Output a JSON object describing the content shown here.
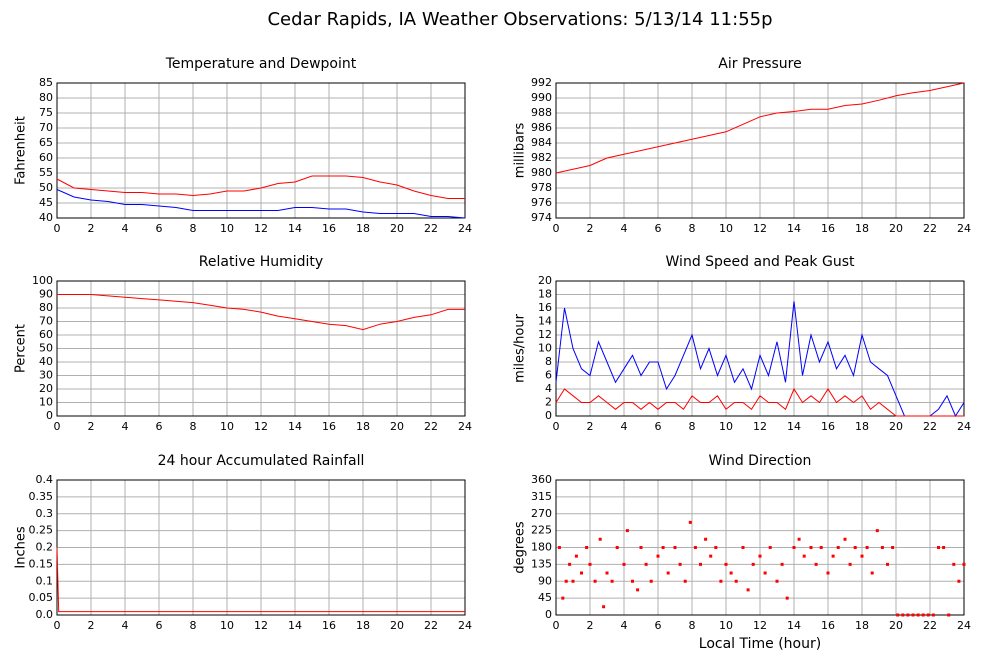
{
  "title": "Cedar Rapids, IA Weather Observations: 5/13/14 11:55p",
  "chart_data": [
    {
      "type": "line",
      "title": "Temperature and Dewpoint",
      "ylabel": "Fahrenheit",
      "x": [
        0,
        1,
        2,
        3,
        4,
        5,
        6,
        7,
        8,
        9,
        10,
        11,
        12,
        13,
        14,
        15,
        16,
        17,
        18,
        19,
        20,
        21,
        22,
        23,
        24
      ],
      "series": [
        {
          "color": "#ff0000",
          "values": [
            53,
            50,
            49.5,
            49,
            48.5,
            48.5,
            48,
            48,
            47.5,
            48,
            49,
            49,
            50,
            51.5,
            52,
            54,
            54,
            54,
            53.5,
            52,
            51,
            49,
            47.5,
            46.5,
            46.5
          ]
        },
        {
          "color": "#0000ff",
          "values": [
            49.5,
            47,
            46,
            45.5,
            44.5,
            44.5,
            44,
            43.5,
            42.5,
            42.5,
            42.5,
            42.5,
            42.5,
            42.5,
            43.5,
            43.5,
            43,
            43,
            42,
            41.5,
            41.5,
            41.5,
            40.5,
            40.5,
            40
          ]
        }
      ],
      "xlim": [
        0,
        24
      ],
      "xticks": [
        0,
        2,
        4,
        6,
        8,
        10,
        12,
        14,
        16,
        18,
        20,
        22,
        24
      ],
      "ylim": [
        40,
        85
      ],
      "yticks": [
        40,
        45,
        50,
        55,
        60,
        65,
        70,
        75,
        80,
        85
      ],
      "grid": true
    },
    {
      "type": "line",
      "title": "Air Pressure",
      "ylabel": "millibars",
      "x": [
        0,
        1,
        2,
        3,
        4,
        5,
        6,
        7,
        8,
        9,
        10,
        11,
        12,
        13,
        14,
        15,
        16,
        17,
        18,
        19,
        20,
        21,
        22,
        23,
        24
      ],
      "series": [
        {
          "color": "#ff0000",
          "values": [
            980,
            980.5,
            981,
            982,
            982.5,
            983,
            983.5,
            984,
            984.5,
            985,
            985.5,
            986.5,
            987.5,
            988,
            988.2,
            988.5,
            988.5,
            989,
            989.2,
            989.7,
            990.3,
            990.7,
            991,
            991.5,
            992
          ]
        }
      ],
      "xlim": [
        0,
        24
      ],
      "xticks": [
        0,
        2,
        4,
        6,
        8,
        10,
        12,
        14,
        16,
        18,
        20,
        22,
        24
      ],
      "ylim": [
        974,
        992
      ],
      "yticks": [
        974,
        976,
        978,
        980,
        982,
        984,
        986,
        988,
        990,
        992
      ],
      "grid": true
    },
    {
      "type": "line",
      "title": "Relative Humidity",
      "ylabel": "Percent",
      "x": [
        0,
        1,
        2,
        3,
        4,
        5,
        6,
        7,
        8,
        9,
        10,
        11,
        12,
        13,
        14,
        15,
        16,
        17,
        18,
        19,
        20,
        21,
        22,
        23,
        24
      ],
      "series": [
        {
          "color": "#ff0000",
          "values": [
            90,
            90,
            90,
            89,
            88,
            87,
            86,
            85,
            84,
            82,
            80,
            79,
            77,
            74,
            72,
            70,
            68,
            67,
            64,
            68,
            70,
            73,
            75,
            79,
            79
          ]
        }
      ],
      "xlim": [
        0,
        24
      ],
      "xticks": [
        0,
        2,
        4,
        6,
        8,
        10,
        12,
        14,
        16,
        18,
        20,
        22,
        24
      ],
      "ylim": [
        0,
        100
      ],
      "yticks": [
        0,
        10,
        20,
        30,
        40,
        50,
        60,
        70,
        80,
        90,
        100
      ],
      "grid": true
    },
    {
      "type": "line",
      "title": "Wind Speed and Peak Gust",
      "ylabel": "miles/hour",
      "x": [
        0,
        0.5,
        1,
        1.5,
        2,
        2.5,
        3,
        3.5,
        4,
        4.5,
        5,
        5.5,
        6,
        6.5,
        7,
        7.5,
        8,
        8.5,
        9,
        9.5,
        10,
        10.5,
        11,
        11.5,
        12,
        12.5,
        13,
        13.5,
        14,
        14.5,
        15,
        15.5,
        16,
        16.5,
        17,
        17.5,
        18,
        18.5,
        19,
        19.5,
        20,
        20.5,
        21,
        21.5,
        22,
        22.5,
        23,
        23.5,
        24
      ],
      "series": [
        {
          "color": "#0000ff",
          "values": [
            5,
            16,
            10,
            7,
            6,
            11,
            8,
            5,
            7,
            9,
            6,
            8,
            8,
            4,
            6,
            9,
            12,
            7,
            10,
            6,
            9,
            5,
            7,
            4,
            9,
            6,
            11,
            5,
            17,
            6,
            12,
            8,
            11,
            7,
            9,
            6,
            12,
            8,
            7,
            6,
            3,
            0,
            0,
            0,
            0,
            1,
            3,
            0,
            2
          ]
        },
        {
          "color": "#ff0000",
          "values": [
            2,
            4,
            3,
            2,
            2,
            3,
            2,
            1,
            2,
            2,
            1,
            2,
            1,
            2,
            2,
            1,
            3,
            2,
            2,
            3,
            1,
            2,
            2,
            1,
            3,
            2,
            2,
            1,
            4,
            2,
            3,
            2,
            4,
            2,
            3,
            2,
            3,
            1,
            2,
            1,
            0,
            0,
            0,
            0,
            0,
            0,
            0,
            0,
            0
          ]
        }
      ],
      "xlim": [
        0,
        24
      ],
      "xticks": [
        0,
        2,
        4,
        6,
        8,
        10,
        12,
        14,
        16,
        18,
        20,
        22,
        24
      ],
      "ylim": [
        0,
        20
      ],
      "yticks": [
        0,
        2,
        4,
        6,
        8,
        10,
        12,
        14,
        16,
        18,
        20
      ],
      "grid": true
    },
    {
      "type": "line",
      "title": "24 hour Accumulated Rainfall",
      "ylabel": "Inches",
      "x": [
        0,
        0.1,
        24
      ],
      "series": [
        {
          "color": "#ff0000",
          "values": [
            0.2,
            0.01,
            0.01
          ]
        }
      ],
      "xlim": [
        0,
        24
      ],
      "xticks": [
        0,
        2,
        4,
        6,
        8,
        10,
        12,
        14,
        16,
        18,
        20,
        22,
        24
      ],
      "ylim": [
        0,
        0.4
      ],
      "yticks": [
        {
          "value": 0,
          "label": "0.0"
        },
        0.05,
        0.1,
        0.15,
        0.2,
        0.25,
        0.3,
        0.35,
        0.4
      ],
      "grid": true
    },
    {
      "type": "scatter",
      "title": "Wind Direction",
      "ylabel": "degrees",
      "xlabel": "Local Time (hour)",
      "x": [
        0.2,
        0.4,
        0.6,
        0.8,
        1,
        1.2,
        1.5,
        1.8,
        2,
        2.3,
        2.6,
        2.8,
        3,
        3.3,
        3.6,
        4,
        4.2,
        4.5,
        4.8,
        5,
        5.3,
        5.6,
        6,
        6.3,
        6.6,
        7,
        7.3,
        7.6,
        7.9,
        8.2,
        8.5,
        8.8,
        9.1,
        9.4,
        9.7,
        10,
        10.3,
        10.6,
        11,
        11.3,
        11.6,
        12,
        12.3,
        12.6,
        13,
        13.3,
        13.6,
        14,
        14.3,
        14.6,
        15,
        15.3,
        15.6,
        16,
        16.3,
        16.6,
        17,
        17.3,
        17.6,
        18,
        18.3,
        18.6,
        18.9,
        19.2,
        19.5,
        19.8,
        20.1,
        20.4,
        20.7,
        21,
        21.3,
        21.6,
        21.9,
        22.2,
        22.5,
        22.8,
        23.1,
        23.4,
        23.7,
        24
      ],
      "values": [
        180,
        45,
        90,
        135,
        90,
        157,
        112,
        180,
        135,
        90,
        202,
        22,
        112,
        90,
        180,
        135,
        225,
        90,
        67,
        180,
        135,
        90,
        157,
        180,
        112,
        180,
        135,
        90,
        247,
        180,
        135,
        202,
        157,
        180,
        90,
        135,
        112,
        90,
        180,
        67,
        135,
        157,
        112,
        180,
        90,
        135,
        45,
        180,
        202,
        157,
        180,
        135,
        180,
        112,
        157,
        180,
        202,
        135,
        180,
        157,
        180,
        112,
        225,
        180,
        135,
        180,
        0,
        0,
        0,
        0,
        0,
        0,
        0,
        0,
        180,
        180,
        0,
        135,
        90,
        135
      ],
      "color": "#ff0000",
      "xlim": [
        0,
        24
      ],
      "xticks": [
        0,
        2,
        4,
        6,
        8,
        10,
        12,
        14,
        16,
        18,
        20,
        22,
        24
      ],
      "ylim": [
        0,
        360
      ],
      "yticks": [
        0,
        45,
        90,
        135,
        180,
        225,
        270,
        315,
        360
      ],
      "grid": true
    }
  ]
}
